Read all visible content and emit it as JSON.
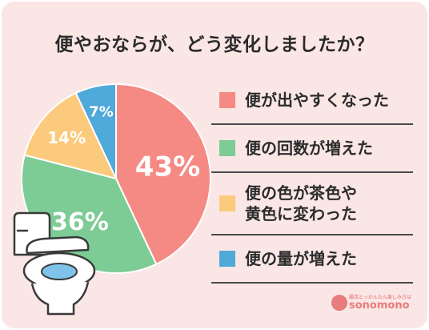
{
  "chart_data": {
    "type": "pie",
    "title": "便やおならが、どう変化しましたか？",
    "start_angle_deg": 0,
    "direction": "clockwise",
    "slices": [
      {
        "label": "便が出やすくなった",
        "value": 43,
        "display": "43%",
        "color": "#f58a84"
      },
      {
        "label": "便の回数が増えた",
        "value": 36,
        "display": "36%",
        "color": "#7dcb95"
      },
      {
        "label": "便の色が茶色や黄色に変わった",
        "label_lines": [
          "便の色が茶色や",
          "黄色に変わった"
        ],
        "value": 14,
        "display": "14%",
        "color": "#fcca7c"
      },
      {
        "label": "便の量が増えた",
        "value": 7,
        "display": "7%",
        "color": "#4fa9d9"
      }
    ]
  },
  "branding": {
    "logo_tagline": "腸活とっかんたん楽しみ方は",
    "logo_text": "sonomono"
  },
  "illustration": {
    "icon": "toilet-icon"
  },
  "colors": {
    "background": "#fbe6e6",
    "text": "#2b2b2b",
    "divider": "#4a4a4a"
  }
}
